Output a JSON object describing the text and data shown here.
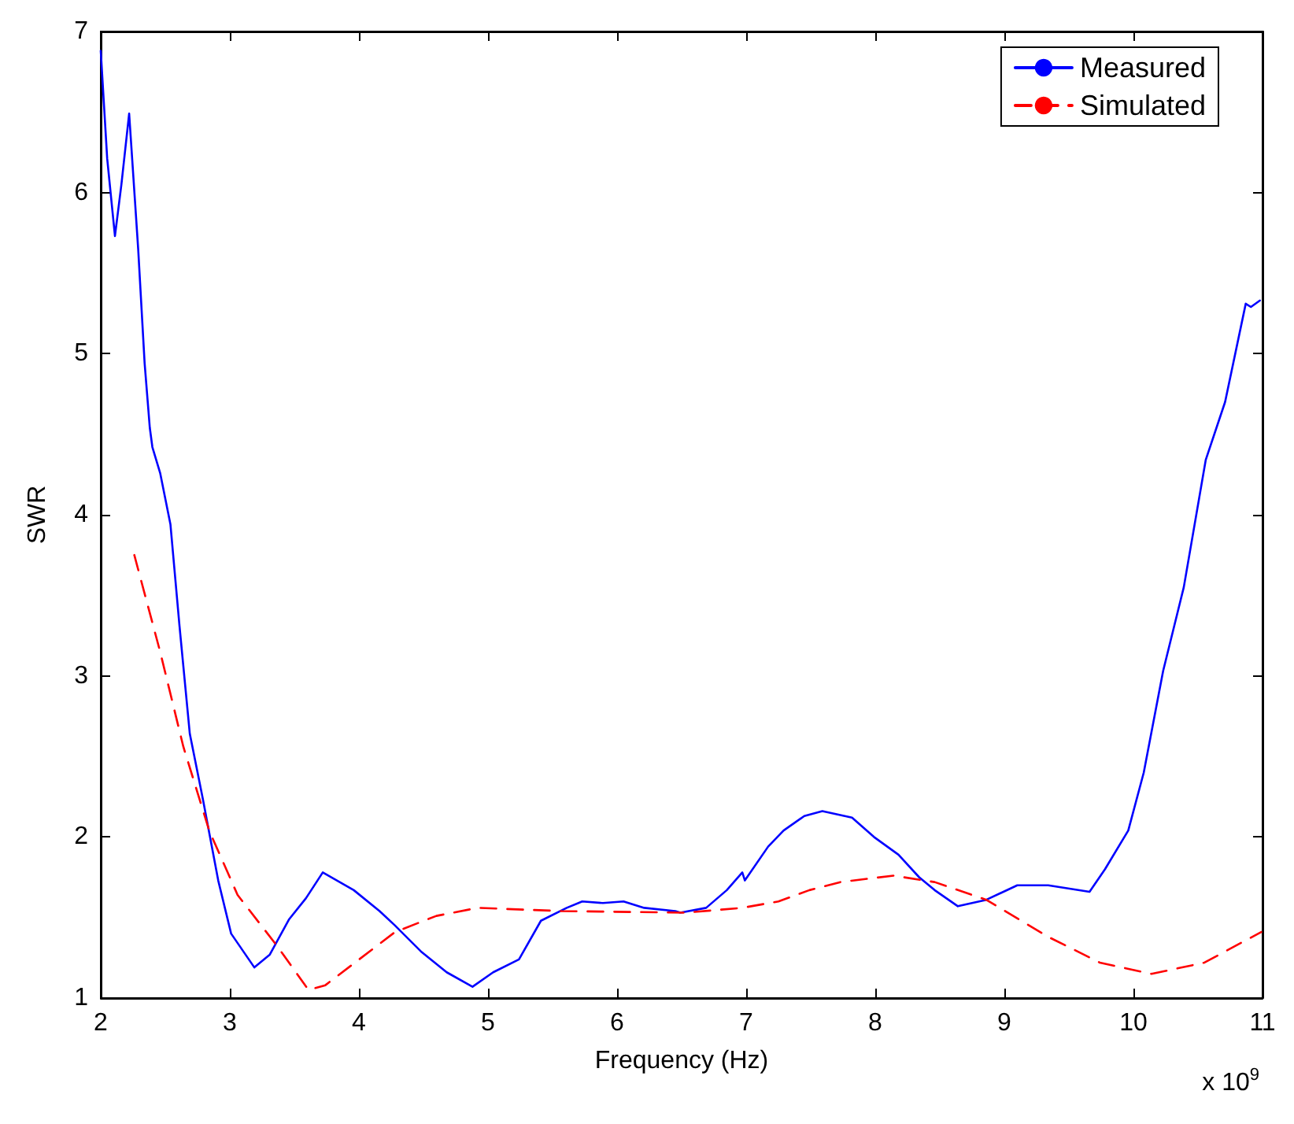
{
  "chart_data": {
    "type": "line",
    "xlabel": "Frequency (Hz)",
    "ylabel": "SWR",
    "xlim": [
      2,
      11
    ],
    "xticks": [
      2,
      3,
      4,
      5,
      6,
      7,
      8,
      9,
      10,
      11
    ],
    "ylim": [
      1,
      7
    ],
    "yticks": [
      1,
      2,
      3,
      4,
      5,
      6,
      7
    ],
    "grid": false,
    "legend": "top right",
    "marker": "none",
    "annotations": [
      "x 10$^{9}$"
    ],
    "series": [
      {
        "name": "Measured",
        "color": "#0000ff",
        "line_style": "solid",
        "x": [
          2.0,
          2.05,
          2.11,
          2.16,
          2.22,
          2.29,
          2.34,
          2.38,
          2.4,
          2.46,
          2.54,
          2.61,
          2.69,
          2.79,
          2.91,
          3.01,
          3.19,
          3.31,
          3.46,
          3.59,
          3.72,
          3.96,
          4.16,
          4.28,
          4.48,
          4.68,
          4.88,
          5.04,
          5.24,
          5.41,
          5.61,
          5.73,
          5.89,
          6.05,
          6.21,
          6.45,
          6.49,
          6.69,
          6.85,
          6.97,
          6.99,
          7.17,
          7.29,
          7.45,
          7.59,
          7.82,
          7.99,
          8.18,
          8.34,
          8.46,
          8.64,
          8.86,
          9.1,
          9.34,
          9.66,
          9.78,
          9.96,
          10.08,
          10.23,
          10.39,
          10.56,
          10.71,
          10.87,
          10.91,
          10.98
        ],
        "values": [
          6.88,
          6.21,
          5.73,
          6.05,
          6.49,
          5.65,
          4.94,
          4.54,
          4.42,
          4.26,
          3.94,
          3.31,
          2.64,
          2.24,
          1.73,
          1.4,
          1.19,
          1.27,
          1.49,
          1.62,
          1.78,
          1.67,
          1.54,
          1.45,
          1.29,
          1.16,
          1.07,
          1.16,
          1.24,
          1.48,
          1.56,
          1.6,
          1.59,
          1.6,
          1.56,
          1.54,
          1.53,
          1.56,
          1.67,
          1.78,
          1.73,
          1.94,
          2.04,
          2.13,
          2.16,
          2.12,
          2.0,
          1.89,
          1.75,
          1.67,
          1.57,
          1.61,
          1.7,
          1.7,
          1.66,
          1.8,
          2.04,
          2.4,
          3.03,
          3.55,
          4.34,
          4.7,
          5.31,
          5.29,
          5.33
        ]
      },
      {
        "name": "Simulated",
        "color": "#ff0000",
        "line_style": "dashed",
        "x": [
          2.26,
          2.46,
          2.64,
          2.84,
          3.06,
          3.36,
          3.61,
          3.74,
          4.28,
          4.6,
          4.92,
          5.57,
          6.53,
          6.97,
          7.25,
          7.49,
          7.73,
          8.14,
          8.46,
          8.86,
          9.34,
          9.74,
          10.14,
          10.55,
          10.99
        ],
        "values": [
          3.75,
          3.15,
          2.56,
          2.04,
          1.64,
          1.33,
          1.05,
          1.08,
          1.41,
          1.51,
          1.56,
          1.54,
          1.53,
          1.56,
          1.6,
          1.67,
          1.72,
          1.76,
          1.72,
          1.61,
          1.38,
          1.22,
          1.15,
          1.22,
          1.41
        ]
      }
    ]
  }
}
